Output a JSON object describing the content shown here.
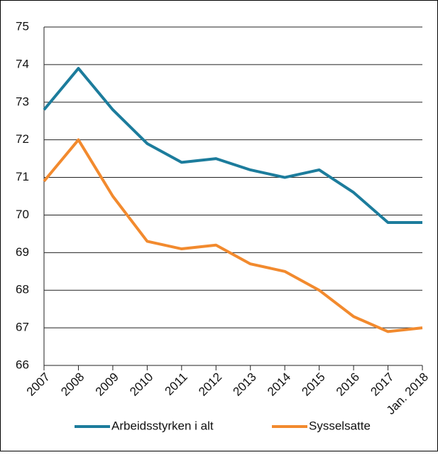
{
  "chart_data": {
    "type": "line",
    "categories": [
      "2007",
      "2008",
      "2009",
      "2010",
      "2011",
      "2012",
      "2013",
      "2014",
      "2015",
      "2016",
      "2017",
      "Jan. 2018"
    ],
    "series": [
      {
        "name": "Arbeidsstyrken i alt",
        "color": "#1c7c9c",
        "values": [
          72.8,
          73.9,
          72.8,
          71.9,
          71.4,
          71.5,
          71.2,
          71.0,
          71.2,
          70.6,
          69.8,
          69.8
        ]
      },
      {
        "name": "Sysselsatte",
        "color": "#f28a2e",
        "values": [
          70.9,
          72.0,
          70.5,
          69.3,
          69.1,
          69.2,
          68.7,
          68.5,
          68.0,
          67.3,
          66.9,
          67.0
        ]
      }
    ],
    "ylim": [
      66,
      75
    ],
    "yticks": [
      66,
      67,
      68,
      69,
      70,
      71,
      72,
      73,
      74,
      75
    ],
    "grid": true
  }
}
